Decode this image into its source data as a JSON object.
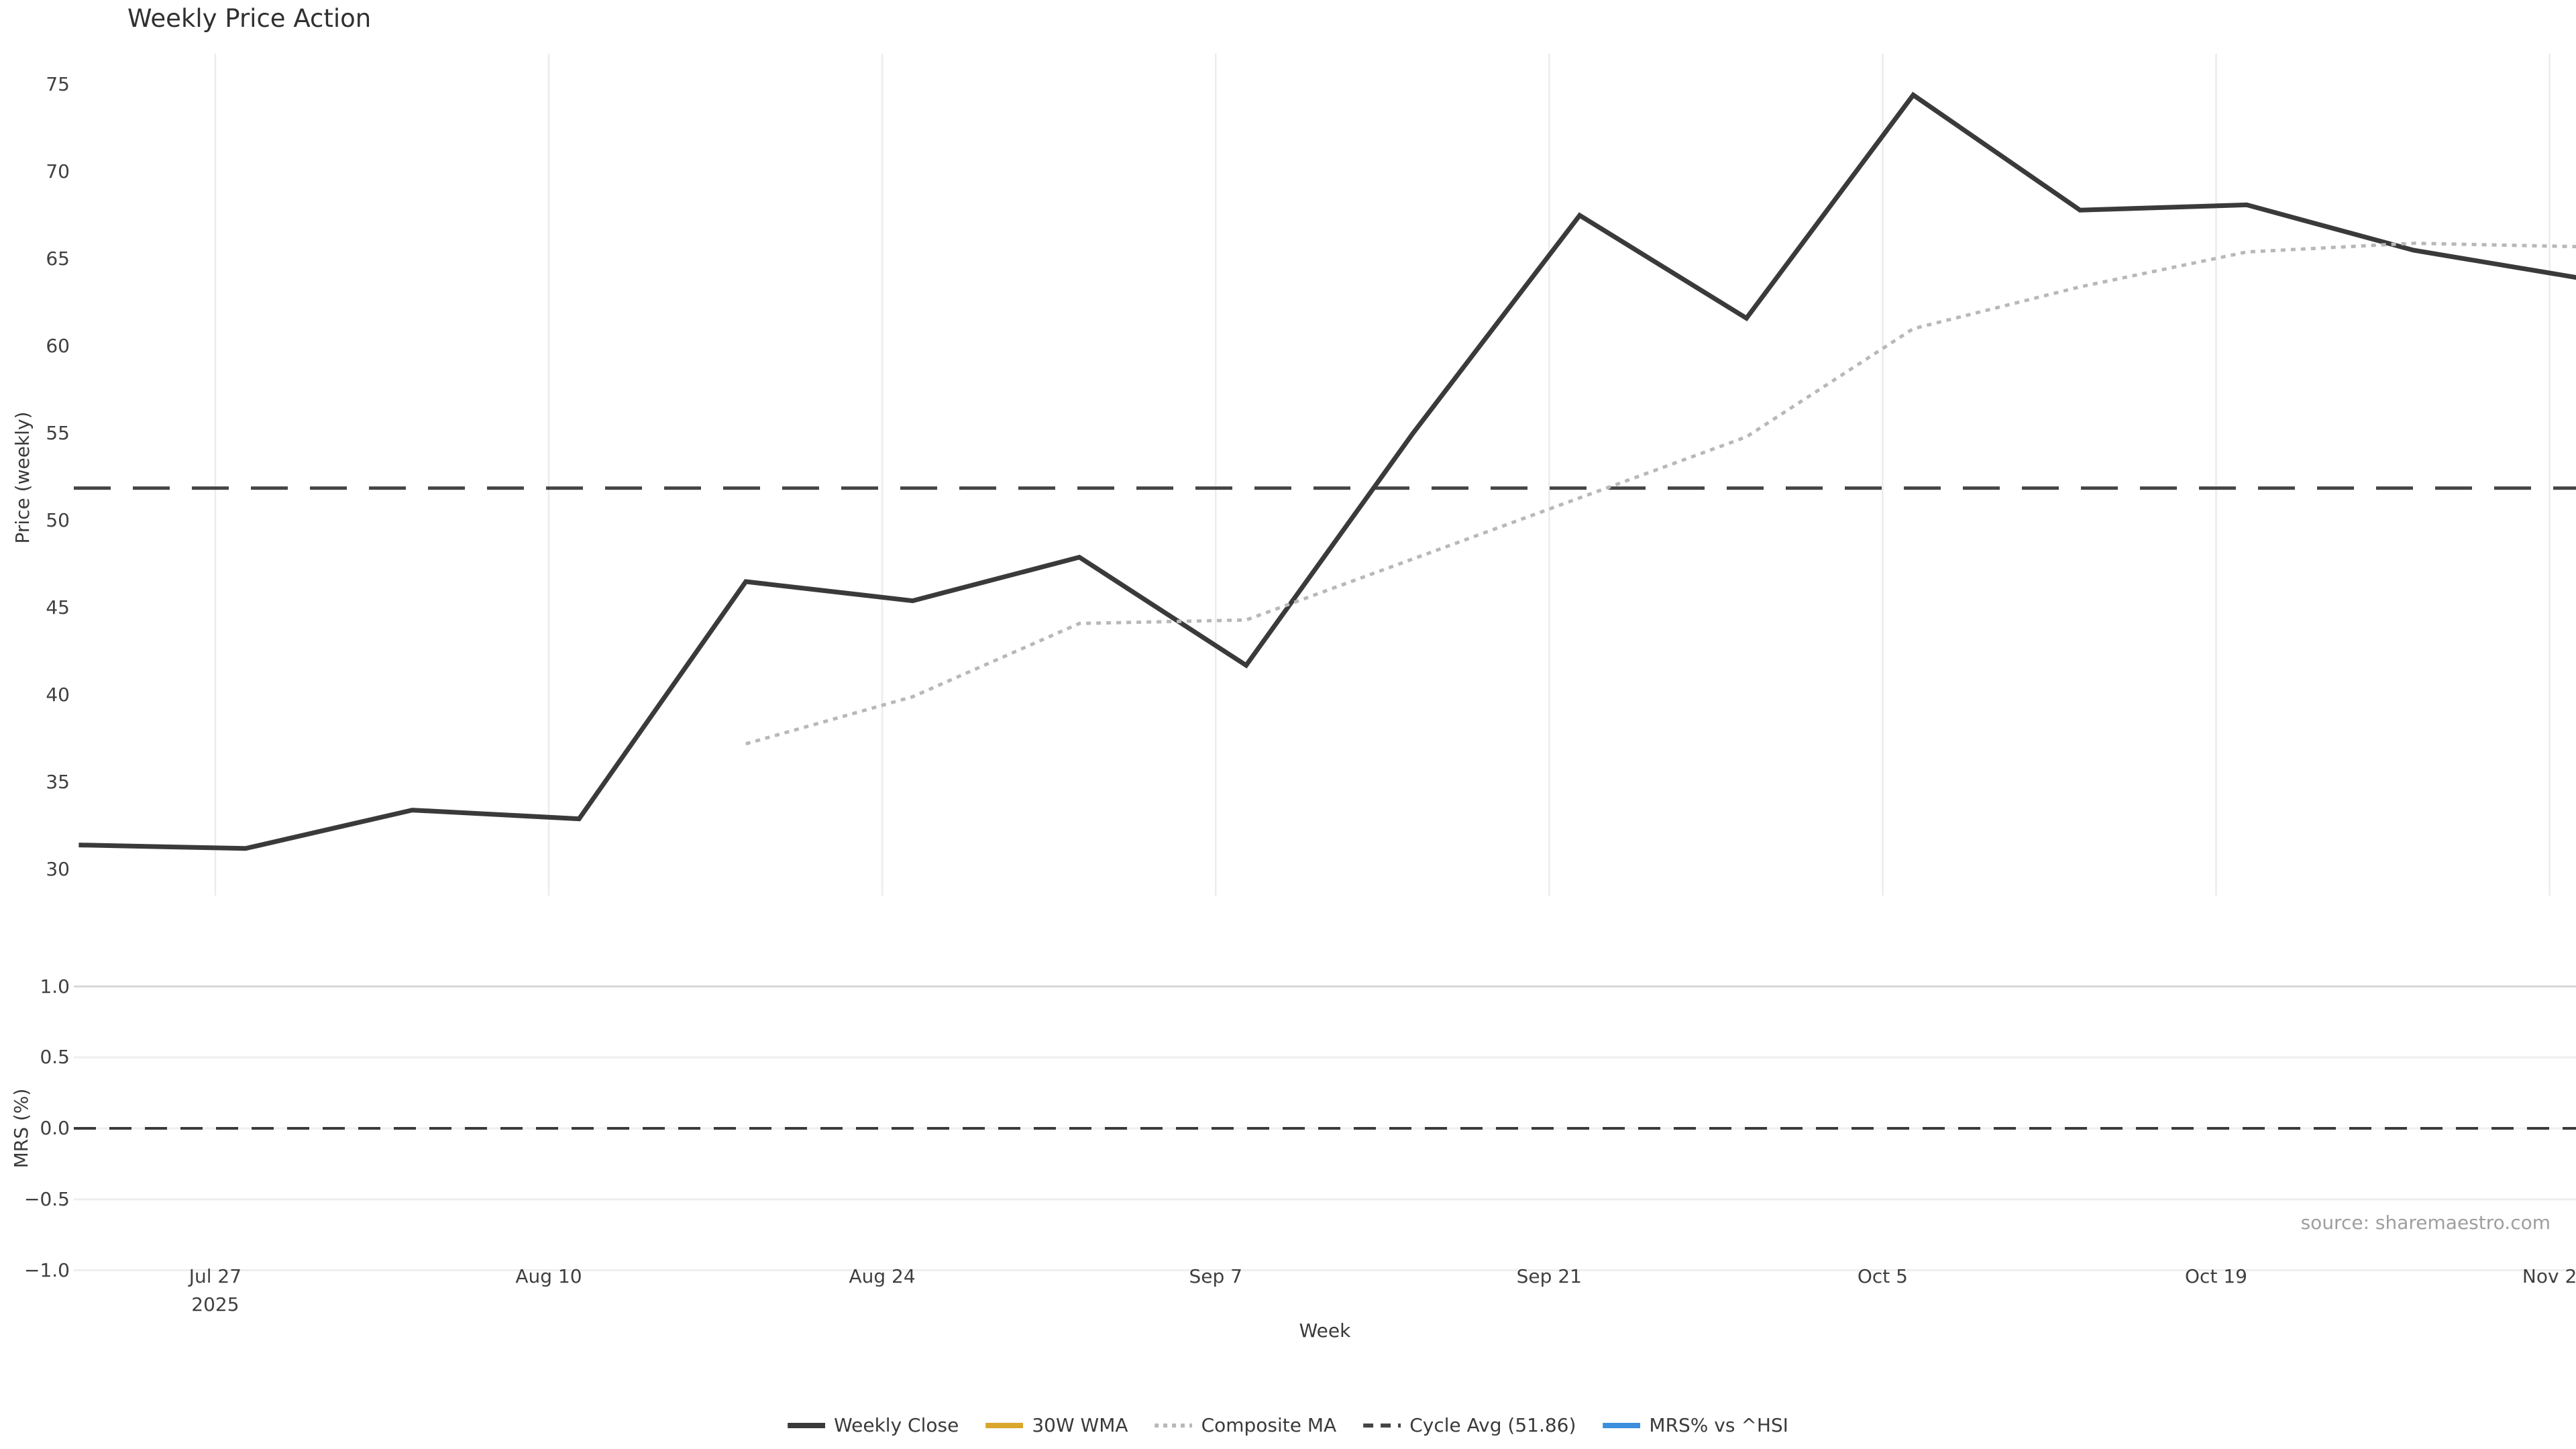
{
  "title": "Weekly Price Action",
  "source": "source: sharemaestro.com",
  "axes": {
    "price_ylabel": "Price (weekly)",
    "mrs_ylabel": "MRS (%)",
    "xlabel": "Week"
  },
  "colors": {
    "weekly_close": "#3a3a3a",
    "wma_30w": "#d9a62e",
    "composite_ma": "#b8b8b8",
    "cycle_avg": "#454545",
    "mrs_line": "#3d8fdd",
    "grid": "#ececec",
    "grid_strong": "#d8d8d8",
    "tick_text": "#3f3f3f",
    "source_text": "#9e9e9e",
    "background": "#ffffff"
  },
  "legend": [
    {
      "label": "Weekly Close",
      "color": "#3a3a3a",
      "style": "solid"
    },
    {
      "label": "30W WMA",
      "color": "#d9a62e",
      "style": "solid"
    },
    {
      "label": "Composite MA",
      "color": "#b8b8b8",
      "style": "dotted"
    },
    {
      "label": "Cycle Avg (51.86)",
      "color": "#454545",
      "style": "dashed"
    },
    {
      "label": "MRS% vs ^HSI",
      "color": "#3d8fdd",
      "style": "solid"
    }
  ],
  "chart_data": {
    "type": "line",
    "title": "Weekly Price Action",
    "xlabel": "Week",
    "x_ticks": [
      {
        "label": "Jul 27",
        "sub": "2025",
        "date": "2025-07-27"
      },
      {
        "label": "Aug 10",
        "date": "2025-08-10"
      },
      {
        "label": "Aug 24",
        "date": "2025-08-24"
      },
      {
        "label": "Sep 7",
        "date": "2025-09-07"
      },
      {
        "label": "Sep 21",
        "date": "2025-09-21"
      },
      {
        "label": "Oct 5",
        "date": "2025-10-05"
      },
      {
        "label": "Oct 19",
        "date": "2025-10-19"
      },
      {
        "label": "Nov 2",
        "date": "2025-11-02"
      }
    ],
    "panels": [
      {
        "name": "price",
        "ylabel": "Price (weekly)",
        "ylim": [
          28.2,
          76.8
        ],
        "y_ticks": [
          30,
          35,
          40,
          45,
          50,
          55,
          60,
          65,
          70,
          75
        ],
        "grid": "vertical",
        "series": [
          {
            "name": "Weekly Close",
            "type": "line",
            "style": "solid",
            "color": "#3a3a3a",
            "width": 7,
            "x": [
              "2025-07-20",
              "2025-07-27",
              "2025-08-03",
              "2025-08-10",
              "2025-08-17",
              "2025-08-24",
              "2025-08-31",
              "2025-09-07",
              "2025-09-14",
              "2025-09-21",
              "2025-09-28",
              "2025-10-05",
              "2025-10-12",
              "2025-10-19",
              "2025-10-26",
              "2025-11-02"
            ],
            "values": [
              31.4,
              31.2,
              33.4,
              32.9,
              46.5,
              45.4,
              47.9,
              41.7,
              55.0,
              67.5,
              61.6,
              74.4,
              67.8,
              68.1,
              65.5,
              63.9
            ]
          },
          {
            "name": "Composite MA",
            "type": "line",
            "style": "dotted",
            "color": "#b8b8b8",
            "width": 5,
            "x": [
              "2025-08-17",
              "2025-08-24",
              "2025-08-31",
              "2025-09-07",
              "2025-09-14",
              "2025-09-21",
              "2025-09-28",
              "2025-10-05",
              "2025-10-12",
              "2025-10-19",
              "2025-10-26",
              "2025-11-02"
            ],
            "values": [
              37.2,
              39.9,
              44.1,
              44.3,
              47.8,
              51.3,
              54.8,
              61.0,
              63.4,
              65.4,
              65.9,
              65.7
            ]
          },
          {
            "name": "Cycle Avg",
            "type": "hline",
            "style": "dashed",
            "color": "#454545",
            "width": 5,
            "value": 51.86
          },
          {
            "name": "30W WMA",
            "type": "line",
            "style": "solid",
            "color": "#d9a62e",
            "width": 7,
            "x": [],
            "values": [],
            "note": "legend entry only; not visible in plotted range"
          }
        ]
      },
      {
        "name": "mrs",
        "ylabel": "MRS (%)",
        "ylim": [
          -1.1,
          1.1
        ],
        "y_tick_labels": [
          "1.0",
          "0.5",
          "0.0",
          "−0.5",
          "−1.0"
        ],
        "y_tick_values": [
          1.0,
          0.5,
          0.0,
          -0.5,
          -1.0
        ],
        "grid": "horizontal",
        "series": [
          {
            "name": "MRS% vs ^HSI",
            "type": "line",
            "style": "solid",
            "color": "#3d8fdd",
            "width": 5,
            "x": [],
            "values": [],
            "note": "no data visible in panel"
          },
          {
            "name": "Zero",
            "type": "hline",
            "style": "dashed",
            "color": "#3a3a3a",
            "width": 4,
            "value": 0.0
          }
        ]
      }
    ],
    "legend_entries": [
      "Weekly Close",
      "30W WMA",
      "Composite MA",
      "Cycle Avg (51.86)",
      "MRS% vs ^HSI"
    ],
    "legend_position": "bottom-center"
  }
}
